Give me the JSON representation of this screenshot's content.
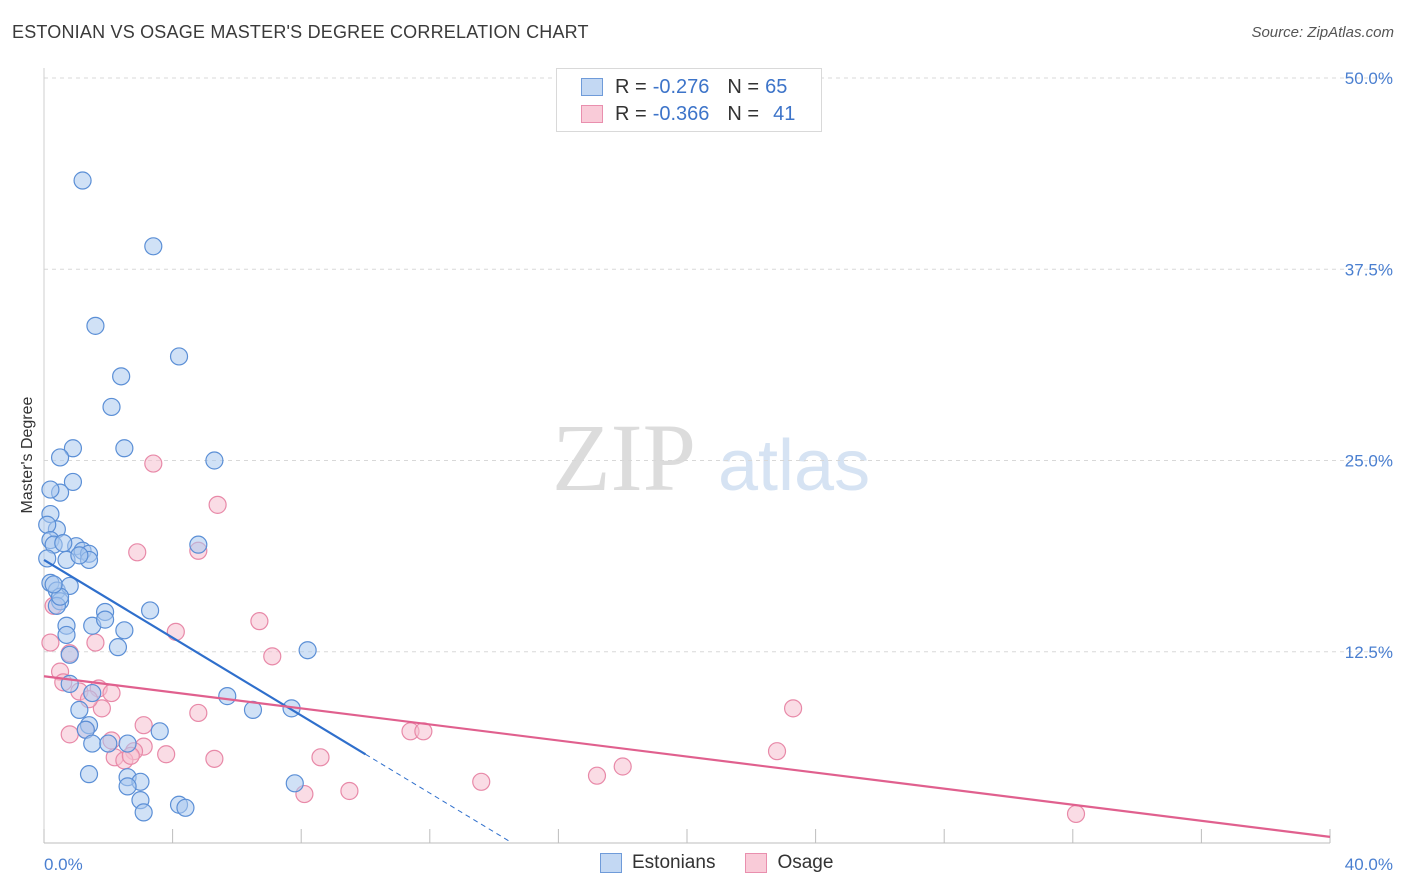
{
  "title": "ESTONIAN VS OSAGE MASTER'S DEGREE CORRELATION CHART",
  "source": "Source: ZipAtlas.com",
  "watermark": {
    "zip": "ZIP",
    "atlas": "atlas"
  },
  "legend": {
    "rows": [
      {
        "r_label": "R =",
        "r_value": "-0.276",
        "n_label": "N =",
        "n_value": "65"
      },
      {
        "r_label": "R =",
        "r_value": "-0.366",
        "n_label": "N =",
        "n_value": "41"
      }
    ]
  },
  "bottom_legend": {
    "estonians": "Estonians",
    "osage": "Osage"
  },
  "colors": {
    "estonians_fill": "#a9c8ee",
    "estonians_stroke": "#5b8fd6",
    "estonians_line": "#2f6fcc",
    "osage_fill": "#f6c0d0",
    "osage_stroke": "#e889a8",
    "osage_line": "#e0608e",
    "tick": "#4a7fd0",
    "grid": "#d8d8d8"
  },
  "chart_data": {
    "type": "scatter",
    "title": "ESTONIAN VS OSAGE MASTER'S DEGREE CORRELATION CHART",
    "xlabel": "",
    "ylabel": "Master's Degree",
    "xlim": [
      0,
      40
    ],
    "ylim": [
      0,
      50
    ],
    "x_tick_labels": [
      "0.0%",
      "40.0%"
    ],
    "y_ticks": [
      12.5,
      25.0,
      37.5,
      50.0
    ],
    "y_tick_labels": [
      "12.5%",
      "25.0%",
      "37.5%",
      "50.0%"
    ],
    "series": [
      {
        "name": "Estonians",
        "r": -0.276,
        "n": 65,
        "trend": {
          "x0": 0,
          "y0": 18.5,
          "x1": 10,
          "y1": 5.8,
          "dash_to_x": 14.5
        },
        "points": [
          [
            1.2,
            43.3
          ],
          [
            3.4,
            39.0
          ],
          [
            1.6,
            33.8
          ],
          [
            4.2,
            31.8
          ],
          [
            2.4,
            30.5
          ],
          [
            2.1,
            28.5
          ],
          [
            0.9,
            25.8
          ],
          [
            2.5,
            25.8
          ],
          [
            0.5,
            25.2
          ],
          [
            5.3,
            25.0
          ],
          [
            0.9,
            23.6
          ],
          [
            0.5,
            22.9
          ],
          [
            0.2,
            23.1
          ],
          [
            0.2,
            21.5
          ],
          [
            0.4,
            20.5
          ],
          [
            0.1,
            20.8
          ],
          [
            0.2,
            19.8
          ],
          [
            0.3,
            19.5
          ],
          [
            1.0,
            19.4
          ],
          [
            1.2,
            19.1
          ],
          [
            0.6,
            19.6
          ],
          [
            1.4,
            18.9
          ],
          [
            0.7,
            18.5
          ],
          [
            1.4,
            18.5
          ],
          [
            0.1,
            18.6
          ],
          [
            4.8,
            19.5
          ],
          [
            0.2,
            17.0
          ],
          [
            0.4,
            16.5
          ],
          [
            0.8,
            16.8
          ],
          [
            0.5,
            15.8
          ],
          [
            0.4,
            15.5
          ],
          [
            1.9,
            15.1
          ],
          [
            3.3,
            15.2
          ],
          [
            0.7,
            14.2
          ],
          [
            1.5,
            14.2
          ],
          [
            1.9,
            14.6
          ],
          [
            2.5,
            13.9
          ],
          [
            0.7,
            13.6
          ],
          [
            2.3,
            12.8
          ],
          [
            0.8,
            12.3
          ],
          [
            8.2,
            12.6
          ],
          [
            0.8,
            10.4
          ],
          [
            1.5,
            9.8
          ],
          [
            5.7,
            9.6
          ],
          [
            6.5,
            8.7
          ],
          [
            7.7,
            8.8
          ],
          [
            1.1,
            8.7
          ],
          [
            1.4,
            7.7
          ],
          [
            3.6,
            7.3
          ],
          [
            1.3,
            7.4
          ],
          [
            1.5,
            6.5
          ],
          [
            2.0,
            6.5
          ],
          [
            2.6,
            6.5
          ],
          [
            1.4,
            4.5
          ],
          [
            2.6,
            4.3
          ],
          [
            3.0,
            4.0
          ],
          [
            2.6,
            3.7
          ],
          [
            7.8,
            3.9
          ],
          [
            3.0,
            2.8
          ],
          [
            4.2,
            2.5
          ],
          [
            4.4,
            2.3
          ],
          [
            3.1,
            2.0
          ],
          [
            0.5,
            16.1
          ],
          [
            0.3,
            16.9
          ],
          [
            1.1,
            18.8
          ]
        ]
      },
      {
        "name": "Osage",
        "r": -0.366,
        "n": 41,
        "trend": {
          "x0": 0,
          "y0": 10.9,
          "x1": 40,
          "y1": 0.4
        },
        "points": [
          [
            3.4,
            24.8
          ],
          [
            5.4,
            22.1
          ],
          [
            2.9,
            19.0
          ],
          [
            4.8,
            19.1
          ],
          [
            0.3,
            15.5
          ],
          [
            6.7,
            14.5
          ],
          [
            4.1,
            13.8
          ],
          [
            0.2,
            13.1
          ],
          [
            1.6,
            13.1
          ],
          [
            0.8,
            12.4
          ],
          [
            7.1,
            12.2
          ],
          [
            0.5,
            11.2
          ],
          [
            0.6,
            10.5
          ],
          [
            1.7,
            10.1
          ],
          [
            2.1,
            9.8
          ],
          [
            1.1,
            9.9
          ],
          [
            1.8,
            8.8
          ],
          [
            4.8,
            8.5
          ],
          [
            23.3,
            8.8
          ],
          [
            3.1,
            7.7
          ],
          [
            1.3,
            7.4
          ],
          [
            11.4,
            7.3
          ],
          [
            11.8,
            7.3
          ],
          [
            0.8,
            7.1
          ],
          [
            2.1,
            6.7
          ],
          [
            3.1,
            6.3
          ],
          [
            3.8,
            5.8
          ],
          [
            2.8,
            6.0
          ],
          [
            22.8,
            6.0
          ],
          [
            2.2,
            5.6
          ],
          [
            8.6,
            5.6
          ],
          [
            5.3,
            5.5
          ],
          [
            2.5,
            5.4
          ],
          [
            2.7,
            5.7
          ],
          [
            18.0,
            5.0
          ],
          [
            17.2,
            4.4
          ],
          [
            13.6,
            4.0
          ],
          [
            8.1,
            3.2
          ],
          [
            9.5,
            3.4
          ],
          [
            32.1,
            1.9
          ],
          [
            1.4,
            9.4
          ]
        ]
      }
    ]
  }
}
